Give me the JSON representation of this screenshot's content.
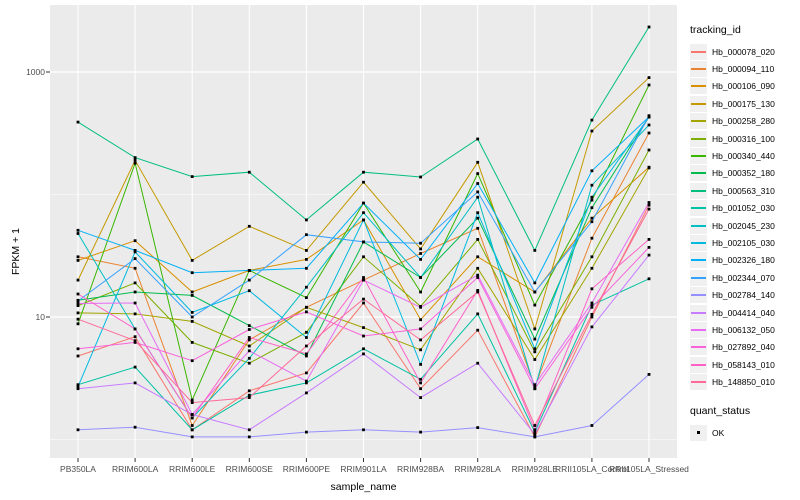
{
  "axes": {
    "y_title": "FPKM + 1",
    "x_title": "sample_name",
    "y_tick_labels": [
      "1000",
      "10"
    ]
  },
  "legend": {
    "tracking_title": "tracking_id",
    "quant_title": "quant_status",
    "quant_value": "OK"
  },
  "chart_data": {
    "type": "line",
    "title": "",
    "xlabel": "sample_name",
    "ylabel": "FPKM + 1",
    "y_scale": "log10",
    "y_major_breaks": [
      10,
      1000
    ],
    "y_minor_breaks": [
      1,
      100
    ],
    "ylim_log10": [
      -0.05,
      3.55
    ],
    "grid": true,
    "legend_position": "right",
    "panel_color": "#ebebeb",
    "grid_color": "#ffffff",
    "point_color": "#000000",
    "categories": [
      "PB350LA",
      "RRIM600LA",
      "RRIM600LE",
      "RRIM600SE",
      "RRIM600PE",
      "RRIM901LA",
      "RRIM928BA",
      "RRIM928LA",
      "RRIM928LE",
      "RRII105LA_Control",
      "RRII105LA_Stressed"
    ],
    "series": [
      {
        "name": "Hb_000078_020",
        "color": "#F8766D",
        "values": [
          4.8,
          6.9,
          1.2,
          2.5,
          3.5,
          13,
          2.6,
          7.8,
          1.05,
          10,
          82
        ]
      },
      {
        "name": "Hb_000094_110",
        "color": "#EA8331",
        "values": [
          31,
          25,
          1.3,
          6.5,
          12,
          20,
          33,
          53,
          2.7,
          44,
          318
        ]
      },
      {
        "name": "Hb_000106_090",
        "color": "#D89000",
        "values": [
          29,
          42,
          16,
          24,
          29.5,
          62,
          9.5,
          31,
          16,
          64,
          167
        ]
      },
      {
        "name": "Hb_000175_130",
        "color": "#C49A00",
        "values": [
          20,
          190,
          29,
          55,
          35,
          126,
          36,
          183,
          8,
          330,
          900
        ]
      },
      {
        "name": "Hb_000258_280",
        "color": "#A3A500",
        "values": [
          10.8,
          10.6,
          9.2,
          5.8,
          12,
          8.2,
          5.4,
          25,
          4.5,
          25,
          165
        ]
      },
      {
        "name": "Hb_000316_100",
        "color": "#7CAE00",
        "values": [
          12.4,
          19,
          6.2,
          4.2,
          7.5,
          31,
          12.2,
          43,
          5.2,
          31,
          231
        ]
      },
      {
        "name": "Hb_000340_440",
        "color": "#39B600",
        "values": [
          8.8,
          180,
          2.1,
          24,
          14.4,
          85,
          16,
          148,
          12.5,
          90,
          783
        ]
      },
      {
        "name": "Hb_000352_180",
        "color": "#00BB4E",
        "values": [
          13.7,
          16,
          15,
          8.5,
          4.8,
          41,
          21,
          64,
          6.6,
          78,
          429
        ]
      },
      {
        "name": "Hb_000563_310",
        "color": "#00BF7D",
        "values": [
          390,
          200,
          140,
          152,
          62,
          152,
          139,
          284,
          35,
          405,
          2330
        ]
      },
      {
        "name": "Hb_001052_030",
        "color": "#00C1A3",
        "values": [
          2.8,
          3.9,
          1.2,
          2.3,
          2.9,
          5.5,
          3.1,
          10.6,
          1.15,
          12.5,
          20.5
        ]
      },
      {
        "name": "Hb_002045_230",
        "color": "#00BFC4",
        "values": [
          48,
          8,
          1.5,
          4.6,
          17.5,
          71,
          21,
          95,
          2.6,
          119,
          369
        ]
      },
      {
        "name": "Hb_002105_030",
        "color": "#00BAE0",
        "values": [
          2.7,
          34,
          10.9,
          16.4,
          6.8,
          62,
          4.1,
          71,
          5.5,
          95,
          429
        ]
      },
      {
        "name": "Hb_002326_180",
        "color": "#00B0F6",
        "values": [
          51,
          35,
          23,
          24,
          25,
          85,
          29.5,
          123,
          19,
          156,
          430
        ]
      },
      {
        "name": "Hb_002344_070",
        "color": "#35A2FF",
        "values": [
          13.5,
          30,
          10,
          20,
          47,
          41,
          40,
          105,
          16,
          60,
          440
        ]
      },
      {
        "name": "Hb_002784_140",
        "color": "#9590FF",
        "values": [
          1.2,
          1.26,
          1.05,
          1.05,
          1.15,
          1.2,
          1.15,
          1.25,
          1.05,
          1.3,
          3.4
        ]
      },
      {
        "name": "Hb_004414_040",
        "color": "#C77CFF",
        "values": [
          2.6,
          2.9,
          1.6,
          1.2,
          2.4,
          5.0,
          2.2,
          4.2,
          1.1,
          8.3,
          32
        ]
      },
      {
        "name": "Hb_006132_050",
        "color": "#E76BF3",
        "values": [
          12.9,
          13,
          1.6,
          5.3,
          3.0,
          20,
          12,
          22,
          2.8,
          13,
          86
        ]
      },
      {
        "name": "Hb_027892_040",
        "color": "#FA62DB",
        "values": [
          5.5,
          6.2,
          4.4,
          7.9,
          11,
          7.0,
          8.0,
          21,
          2.6,
          12,
          37
        ]
      },
      {
        "name": "Hb_058143_010",
        "color": "#FF61C9",
        "values": [
          15.4,
          8.0,
          1.5,
          6.8,
          5.0,
          21,
          2.9,
          16.5,
          1.2,
          17,
          43
        ]
      },
      {
        "name": "Hb_148850_010",
        "color": "#FF6A98",
        "values": [
          9.6,
          6.4,
          2.0,
          2.2,
          5.8,
          14,
          6.5,
          16,
          1.3,
          10.5,
          76
        ]
      }
    ],
    "quant_status": {
      "label": "OK",
      "marker": "square",
      "color": "#000000"
    }
  }
}
